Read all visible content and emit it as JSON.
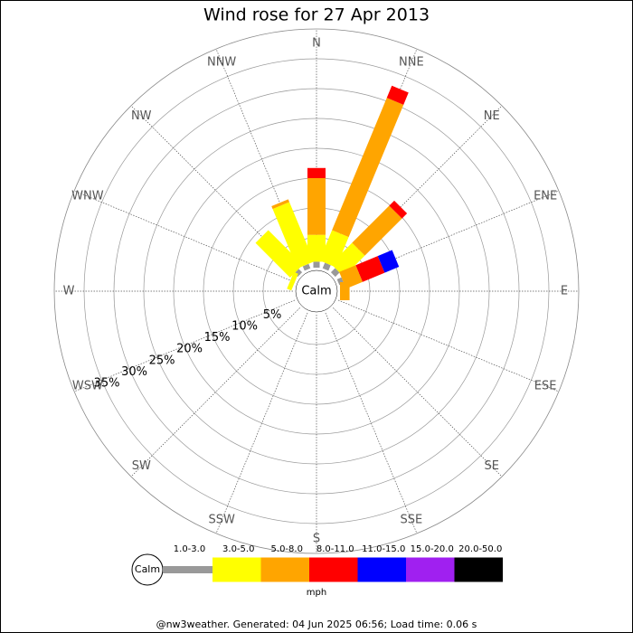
{
  "chart_data": {
    "type": "windrose",
    "title": "Wind rose for 27 Apr 2013",
    "directions": [
      "N",
      "NNE",
      "NE",
      "ENE",
      "E",
      "ESE",
      "SE",
      "SSE",
      "S",
      "SSW",
      "SW",
      "WSW",
      "W",
      "WNW",
      "NW",
      "NNW"
    ],
    "center_label": "Calm",
    "rlim": [
      0,
      40
    ],
    "rticks": [
      {
        "value": 5,
        "label": "5%"
      },
      {
        "value": 10,
        "label": "10%"
      },
      {
        "value": 15,
        "label": "15%"
      },
      {
        "value": 20,
        "label": "20%"
      },
      {
        "value": 25,
        "label": "25%"
      },
      {
        "value": 30,
        "label": "30%"
      },
      {
        "value": 35,
        "label": "35%"
      }
    ],
    "unit": "mph",
    "series": [
      {
        "name": "1.0-3.0",
        "color": "#999999",
        "values": [
          1,
          1,
          1,
          0.8,
          0,
          0,
          0,
          0,
          0,
          0,
          0,
          0,
          0,
          0,
          0.8,
          0.8
        ]
      },
      {
        "name": "3.0-5.0",
        "color": "#ffff00",
        "values": [
          4.5,
          5.5,
          5,
          0,
          0,
          0,
          0,
          0,
          0,
          0,
          0,
          0,
          0,
          0.8,
          8.2,
          10.8
        ]
      },
      {
        "name": "5.0-8.0",
        "color": "#ffa500",
        "values": [
          9.5,
          24,
          8.8,
          3,
          1.6,
          0,
          0,
          0,
          0,
          0,
          0,
          0,
          0,
          0,
          0,
          0.5
        ]
      },
      {
        "name": "8.0-11.0",
        "color": "#ff0000",
        "values": [
          1.7,
          2.2,
          1.2,
          4,
          0,
          0,
          0,
          0,
          0,
          0,
          0,
          0,
          0,
          0,
          0,
          0
        ]
      },
      {
        "name": "11.0-15.0",
        "color": "#0000ff",
        "values": [
          0,
          0,
          0,
          2.6,
          0,
          0,
          0,
          0,
          0,
          0,
          0,
          0,
          0,
          0,
          0,
          0
        ]
      },
      {
        "name": "15.0-20.0",
        "color": "#a020f0",
        "values": [
          0,
          0,
          0,
          0,
          0,
          0,
          0,
          0,
          0,
          0,
          0,
          0,
          0,
          0,
          0,
          0
        ]
      },
      {
        "name": "20.0-50.0",
        "color": "#000000",
        "values": [
          0,
          0,
          0,
          0,
          0,
          0,
          0,
          0,
          0,
          0,
          0,
          0,
          0,
          0,
          0,
          0
        ]
      }
    ]
  },
  "footer": "@nw3weather. Generated: 04 Jun 2025 06:56; Load time: 0.06 s"
}
